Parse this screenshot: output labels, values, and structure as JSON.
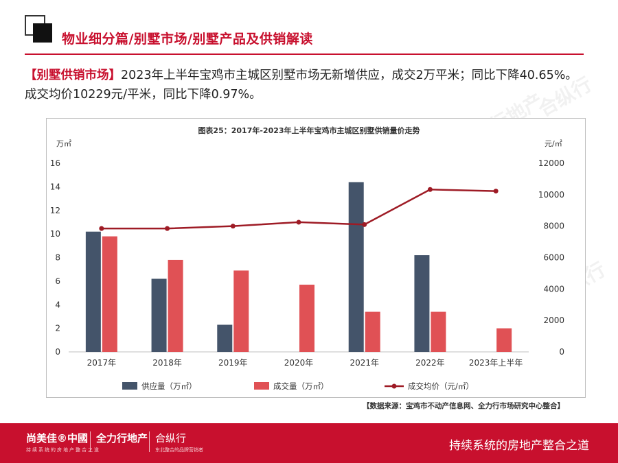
{
  "header": {
    "title": "物业细分篇/别墅市场/别墅产品及供销解读"
  },
  "intro": {
    "tag": "【别墅供销市场】",
    "text": "2023年上半年宝鸡市主城区别墅市场无新增供应，成交2万平米；同比下降40.65%。成交均价10229元/平米，同比下降0.97%。"
  },
  "chart_data": {
    "type": "bar",
    "title": "图表25：2017年-2023年上半年宝鸡市主城区别墅供销量价走势",
    "categories": [
      "2017年",
      "2018年",
      "2019年",
      "2020年",
      "2021年",
      "2022年",
      "2023年上半年"
    ],
    "y_left_unit": "万㎡",
    "y_right_unit": "元/㎡",
    "ylim_left": [
      0,
      16
    ],
    "yticks_left": [
      0,
      2,
      4,
      6,
      8,
      10,
      12,
      14,
      16
    ],
    "ylim_right": [
      0,
      12000
    ],
    "yticks_right": [
      0,
      2000,
      4000,
      6000,
      8000,
      10000,
      12000
    ],
    "series": [
      {
        "name": "供应量（万㎡）",
        "type": "bar",
        "axis": "left",
        "color": "#44546a",
        "values": [
          10.2,
          6.2,
          2.3,
          0,
          14.4,
          8.2,
          0
        ]
      },
      {
        "name": "成交量（万㎡）",
        "type": "bar",
        "axis": "left",
        "color": "#e05155",
        "values": [
          9.8,
          7.8,
          6.9,
          5.7,
          3.4,
          3.4,
          2.0
        ]
      },
      {
        "name": "成交均价（元/㎡）",
        "type": "line",
        "axis": "right",
        "color": "#9e1b25",
        "values": [
          7850,
          7850,
          8000,
          8250,
          8100,
          10330,
          10229
        ]
      }
    ],
    "legend_position": "bottom",
    "grid": false
  },
  "source": "【数据来源：宝鸡市不动产信息网、全力行市场研究中心整合】",
  "watermark": {
    "text1": "尚美佳中国",
    "text2": "全力行地产",
    "text3": "合纵行"
  },
  "footer": {
    "brand1": "尚美佳®中國",
    "brand1_sub": "持续系统的房地产整合之道",
    "brand2": "全力行地产",
    "brand3": "合纵行",
    "brand3_sub": "东北整合的品牌营销者",
    "slogan": "持续系统的房地产整合之道"
  }
}
